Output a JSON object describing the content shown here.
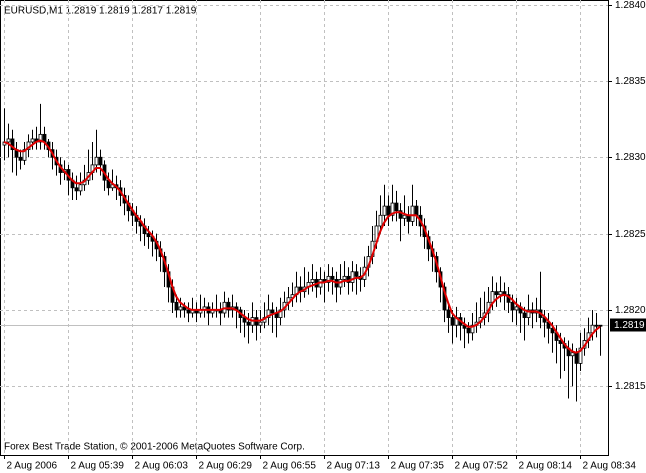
{
  "chart_data": {
    "type": "candlestick",
    "title": "EURUSD,M1  1.2819 1.2819 1.2817 1.2819",
    "annotation": "Forex Best Trade Station, © 2001-2006 MetaQuotes Software Corp.",
    "color": "#000000",
    "ylim": [
      1.28105,
      1.28403
    ],
    "yticks": [
      {
        "value": 1.284,
        "label": "1.2840"
      },
      1.2835,
      {
        "value": 1.283,
        "label": "1.2830"
      },
      1.2825,
      {
        "value": 1.282,
        "label": "1.2820"
      },
      1.2815
    ],
    "grid": true,
    "last_price": 1.2819,
    "categories": [
      "2 Aug 2006",
      null,
      null,
      null,
      null,
      null,
      null,
      null,
      null,
      null,
      null,
      null,
      null,
      null,
      null,
      null,
      "2 Aug 05:39",
      null,
      null,
      null,
      null,
      null,
      null,
      null,
      null,
      null,
      null,
      null,
      null,
      null,
      null,
      null,
      "2 Aug 06:03",
      null,
      null,
      null,
      null,
      null,
      null,
      null,
      null,
      null,
      null,
      null,
      null,
      null,
      null,
      null,
      "2 Aug 06:29",
      null,
      null,
      null,
      null,
      null,
      null,
      null,
      null,
      null,
      null,
      null,
      null,
      null,
      null,
      null,
      "2 Aug 06:55",
      null,
      null,
      null,
      null,
      null,
      null,
      null,
      null,
      null,
      null,
      null,
      null,
      null,
      null,
      null,
      "2 Aug 07:13",
      null,
      null,
      null,
      null,
      null,
      null,
      null,
      null,
      null,
      null,
      null,
      null,
      null,
      null,
      null,
      "2 Aug 07:35",
      null,
      null,
      null,
      null,
      null,
      null,
      null,
      null,
      null,
      null,
      null,
      null,
      null,
      null,
      null,
      "2 Aug 07:52",
      null,
      null,
      null,
      null,
      null,
      null,
      null,
      null,
      null,
      null,
      null,
      null,
      null,
      null,
      null,
      "2 Aug 08:14",
      null,
      null,
      null,
      null,
      null,
      null,
      null,
      null,
      null,
      null,
      null,
      null,
      null,
      null,
      null,
      "2 Aug 08:34",
      null,
      null,
      null,
      null,
      null
    ],
    "ohlc": [
      [
        1.28308,
        1.28332,
        1.28298,
        1.2831
      ],
      [
        1.2831,
        1.28322,
        1.283,
        1.28312
      ],
      [
        1.28312,
        1.28318,
        1.2829,
        1.28305
      ],
      [
        1.28305,
        1.2831,
        1.28288,
        1.283
      ],
      [
        1.283,
        1.28305,
        1.28292,
        1.28298
      ],
      [
        1.28298,
        1.2831,
        1.28295,
        1.28305
      ],
      [
        1.28305,
        1.28315,
        1.283,
        1.2831
      ],
      [
        1.2831,
        1.28318,
        1.28305,
        1.28312
      ],
      [
        1.28312,
        1.2832,
        1.28305,
        1.2831
      ],
      [
        1.2831,
        1.28335,
        1.28305,
        1.28315
      ],
      [
        1.28315,
        1.2832,
        1.28305,
        1.2831
      ],
      [
        1.2831,
        1.28312,
        1.283,
        1.28305
      ],
      [
        1.28305,
        1.2831,
        1.28292,
        1.283
      ],
      [
        1.283,
        1.28305,
        1.28288,
        1.28295
      ],
      [
        1.28295,
        1.283,
        1.28282,
        1.2829
      ],
      [
        1.2829,
        1.28298,
        1.28285,
        1.28292
      ],
      [
        1.28292,
        1.28295,
        1.28275,
        1.28285
      ],
      [
        1.28285,
        1.2829,
        1.28272,
        1.2828
      ],
      [
        1.2828,
        1.28288,
        1.28272,
        1.28278
      ],
      [
        1.28278,
        1.2829,
        1.28275,
        1.28282
      ],
      [
        1.28282,
        1.28295,
        1.28278,
        1.28285
      ],
      [
        1.28285,
        1.28305,
        1.28282,
        1.2829
      ],
      [
        1.2829,
        1.2831,
        1.28285,
        1.28295
      ],
      [
        1.28295,
        1.28318,
        1.2829,
        1.283
      ],
      [
        1.283,
        1.28305,
        1.28288,
        1.28295
      ],
      [
        1.28295,
        1.28298,
        1.28278,
        1.28285
      ],
      [
        1.28285,
        1.2829,
        1.28275,
        1.2828
      ],
      [
        1.2828,
        1.28292,
        1.28278,
        1.28282
      ],
      [
        1.28282,
        1.28288,
        1.28272,
        1.2828
      ],
      [
        1.2828,
        1.28285,
        1.28268,
        1.28275
      ],
      [
        1.28275,
        1.2828,
        1.28262,
        1.2827
      ],
      [
        1.2827,
        1.28275,
        1.28258,
        1.28265
      ],
      [
        1.28265,
        1.2827,
        1.28255,
        1.28262
      ],
      [
        1.28262,
        1.28268,
        1.2825,
        1.28258
      ],
      [
        1.28258,
        1.28262,
        1.28245,
        1.28255
      ],
      [
        1.28255,
        1.2826,
        1.28242,
        1.2825
      ],
      [
        1.2825,
        1.28255,
        1.2824,
        1.28248
      ],
      [
        1.28248,
        1.28252,
        1.28235,
        1.28245
      ],
      [
        1.28245,
        1.2825,
        1.28232,
        1.2824
      ],
      [
        1.2824,
        1.28245,
        1.28225,
        1.28235
      ],
      [
        1.28235,
        1.28238,
        1.28215,
        1.28225
      ],
      [
        1.28225,
        1.2823,
        1.28205,
        1.28215
      ],
      [
        1.28215,
        1.2822,
        1.28198,
        1.28205
      ],
      [
        1.28205,
        1.2821,
        1.28195,
        1.282
      ],
      [
        1.282,
        1.28208,
        1.28195,
        1.28202
      ],
      [
        1.28202,
        1.28205,
        1.28195,
        1.282
      ],
      [
        1.282,
        1.28205,
        1.28192,
        1.28198
      ],
      [
        1.28198,
        1.28208,
        1.28195,
        1.282
      ],
      [
        1.282,
        1.28205,
        1.28192,
        1.28198
      ],
      [
        1.28198,
        1.2821,
        1.28195,
        1.282
      ],
      [
        1.282,
        1.28208,
        1.28195,
        1.28202
      ],
      [
        1.28202,
        1.28205,
        1.2819,
        1.28198
      ],
      [
        1.28198,
        1.28205,
        1.28195,
        1.282
      ],
      [
        1.282,
        1.2821,
        1.28195,
        1.282
      ],
      [
        1.282,
        1.28205,
        1.2819,
        1.28198
      ],
      [
        1.28198,
        1.28212,
        1.28195,
        1.28205
      ],
      [
        1.28205,
        1.28208,
        1.28195,
        1.282
      ],
      [
        1.282,
        1.2821,
        1.28195,
        1.28202
      ],
      [
        1.28202,
        1.28205,
        1.28188,
        1.282
      ],
      [
        1.282,
        1.28202,
        1.28185,
        1.28195
      ],
      [
        1.28195,
        1.282,
        1.28182,
        1.28192
      ],
      [
        1.28192,
        1.28198,
        1.28178,
        1.2819
      ],
      [
        1.2819,
        1.28205,
        1.28185,
        1.28195
      ],
      [
        1.28195,
        1.282,
        1.2818,
        1.2819
      ],
      [
        1.2819,
        1.282,
        1.28185,
        1.28192
      ],
      [
        1.28192,
        1.28205,
        1.28188,
        1.28195
      ],
      [
        1.28195,
        1.2821,
        1.2819,
        1.282
      ],
      [
        1.282,
        1.28205,
        1.28185,
        1.28198
      ],
      [
        1.28198,
        1.28202,
        1.28182,
        1.28195
      ],
      [
        1.28195,
        1.28208,
        1.2819,
        1.282
      ],
      [
        1.282,
        1.28212,
        1.28195,
        1.28205
      ],
      [
        1.28205,
        1.28215,
        1.282,
        1.28208
      ],
      [
        1.28208,
        1.28218,
        1.28202,
        1.2821
      ],
      [
        1.2821,
        1.28225,
        1.28205,
        1.28215
      ],
      [
        1.28215,
        1.28222,
        1.28205,
        1.28212
      ],
      [
        1.28212,
        1.28228,
        1.28208,
        1.28215
      ],
      [
        1.28215,
        1.28225,
        1.2821,
        1.28218
      ],
      [
        1.28218,
        1.2823,
        1.28212,
        1.2822
      ],
      [
        1.2822,
        1.28225,
        1.28208,
        1.28215
      ],
      [
        1.28215,
        1.28228,
        1.2821,
        1.2822
      ],
      [
        1.2822,
        1.28225,
        1.28205,
        1.28218
      ],
      [
        1.28218,
        1.2823,
        1.28212,
        1.28222
      ],
      [
        1.28222,
        1.28228,
        1.2821,
        1.2822
      ],
      [
        1.2822,
        1.28225,
        1.28205,
        1.28215
      ],
      [
        1.28215,
        1.2823,
        1.2821,
        1.2822
      ],
      [
        1.2822,
        1.28232,
        1.28215,
        1.28222
      ],
      [
        1.28222,
        1.28228,
        1.2821,
        1.28218
      ],
      [
        1.28218,
        1.28232,
        1.28212,
        1.28225
      ],
      [
        1.28225,
        1.2823,
        1.2821,
        1.28222
      ],
      [
        1.28222,
        1.28228,
        1.28212,
        1.2822
      ],
      [
        1.2822,
        1.28235,
        1.28215,
        1.28228
      ],
      [
        1.28228,
        1.28242,
        1.28222,
        1.28235
      ],
      [
        1.28235,
        1.28255,
        1.2823,
        1.28245
      ],
      [
        1.28245,
        1.28265,
        1.2824,
        1.28255
      ],
      [
        1.28255,
        1.28275,
        1.2825,
        1.28262
      ],
      [
        1.28262,
        1.28282,
        1.28255,
        1.28268
      ],
      [
        1.28268,
        1.28275,
        1.28255,
        1.28262
      ],
      [
        1.28262,
        1.28282,
        1.28258,
        1.2827
      ],
      [
        1.2827,
        1.28278,
        1.28258,
        1.28265
      ],
      [
        1.28265,
        1.2827,
        1.28245,
        1.2826
      ],
      [
        1.2826,
        1.28275,
        1.28255,
        1.28262
      ],
      [
        1.28262,
        1.28268,
        1.2825,
        1.28258
      ],
      [
        1.28258,
        1.28282,
        1.28255,
        1.28268
      ],
      [
        1.28268,
        1.28272,
        1.28255,
        1.28262
      ],
      [
        1.28262,
        1.28268,
        1.28248,
        1.28255
      ],
      [
        1.28255,
        1.2826,
        1.2824,
        1.28248
      ],
      [
        1.28248,
        1.28252,
        1.28232,
        1.2824
      ],
      [
        1.2824,
        1.28245,
        1.28225,
        1.28235
      ],
      [
        1.28235,
        1.28238,
        1.28218,
        1.28225
      ],
      [
        1.28225,
        1.28228,
        1.28205,
        1.28215
      ],
      [
        1.28215,
        1.28218,
        1.28192,
        1.282
      ],
      [
        1.282,
        1.28205,
        1.28185,
        1.28195
      ],
      [
        1.28195,
        1.282,
        1.28178,
        1.2819
      ],
      [
        1.2819,
        1.28202,
        1.28182,
        1.28195
      ],
      [
        1.28195,
        1.28198,
        1.2818,
        1.2819
      ],
      [
        1.2819,
        1.28195,
        1.28175,
        1.28188
      ],
      [
        1.28188,
        1.28192,
        1.28178,
        1.28185
      ],
      [
        1.28185,
        1.28198,
        1.2818,
        1.2819
      ],
      [
        1.2819,
        1.28205,
        1.28185,
        1.28192
      ],
      [
        1.28192,
        1.28208,
        1.28188,
        1.28195
      ],
      [
        1.28195,
        1.28212,
        1.2819,
        1.28198
      ],
      [
        1.28198,
        1.28215,
        1.28192,
        1.28205
      ],
      [
        1.28205,
        1.28222,
        1.282,
        1.28212
      ],
      [
        1.28212,
        1.28218,
        1.28202,
        1.2821
      ],
      [
        1.2821,
        1.28222,
        1.28205,
        1.28212
      ],
      [
        1.28212,
        1.28218,
        1.282,
        1.2821
      ],
      [
        1.2821,
        1.28215,
        1.28198,
        1.28205
      ],
      [
        1.28205,
        1.2821,
        1.28192,
        1.282
      ],
      [
        1.282,
        1.28208,
        1.2819,
        1.28202
      ],
      [
        1.28202,
        1.28205,
        1.28185,
        1.28198
      ],
      [
        1.28198,
        1.28202,
        1.2818,
        1.28195
      ],
      [
        1.28195,
        1.2821,
        1.2819,
        1.282
      ],
      [
        1.282,
        1.28205,
        1.28188,
        1.28198
      ],
      [
        1.28198,
        1.28208,
        1.28192,
        1.282
      ],
      [
        1.282,
        1.28225,
        1.28188,
        1.28195
      ],
      [
        1.28195,
        1.282,
        1.28182,
        1.28192
      ],
      [
        1.28192,
        1.28198,
        1.28178,
        1.28188
      ],
      [
        1.28188,
        1.28192,
        1.28172,
        1.28185
      ],
      [
        1.28185,
        1.2819,
        1.28165,
        1.2818
      ],
      [
        1.2818,
        1.28185,
        1.28155,
        1.28178
      ],
      [
        1.28178,
        1.28182,
        1.2816,
        1.28175
      ],
      [
        1.28175,
        1.2818,
        1.28142,
        1.2817
      ],
      [
        1.2817,
        1.28178,
        1.2815,
        1.28172
      ],
      [
        1.28172,
        1.28175,
        1.2814,
        1.28165
      ],
      [
        1.28165,
        1.28185,
        1.2816,
        1.28175
      ],
      [
        1.28175,
        1.28188,
        1.2817,
        1.2818
      ],
      [
        1.2818,
        1.28195,
        1.28175,
        1.28185
      ],
      [
        1.28185,
        1.282,
        1.2818,
        1.2819
      ],
      [
        1.2819,
        1.28198,
        1.28182,
        1.2819
      ],
      [
        1.2819,
        1.2819,
        1.2817,
        1.2819
      ]
    ],
    "ma": {
      "color": "#e00000",
      "values": [
        1.2831,
        1.28309,
        1.28307,
        1.28305,
        1.28304,
        1.28304,
        1.28306,
        1.28308,
        1.2831,
        1.28311,
        1.2831,
        1.28307,
        1.28303,
        1.28298,
        1.28294,
        1.28291,
        1.28288,
        1.28285,
        1.28283,
        1.28283,
        1.28284,
        1.28287,
        1.2829,
        1.28293,
        1.28293,
        1.2829,
        1.28286,
        1.28283,
        1.28281,
        1.28278,
        1.28274,
        1.2827,
        1.28266,
        1.28262,
        1.28259,
        1.28255,
        1.28252,
        1.28249,
        1.28245,
        1.2824,
        1.28233,
        1.28225,
        1.28216,
        1.28209,
        1.28205,
        1.28203,
        1.28201,
        1.282,
        1.282,
        1.282,
        1.282,
        1.282,
        1.282,
        1.282,
        1.282,
        1.28201,
        1.28201,
        1.28201,
        1.282,
        1.28198,
        1.28196,
        1.28194,
        1.28193,
        1.28193,
        1.28193,
        1.28194,
        1.28196,
        1.28197,
        1.28198,
        1.28199,
        1.28201,
        1.28204,
        1.28207,
        1.2821,
        1.28212,
        1.28213,
        1.28215,
        1.28216,
        1.28217,
        1.28218,
        1.28218,
        1.28219,
        1.28219,
        1.28218,
        1.28218,
        1.28219,
        1.28219,
        1.2822,
        1.28221,
        1.28221,
        1.28223,
        1.28228,
        1.28235,
        1.28243,
        1.28251,
        1.28257,
        1.28261,
        1.28263,
        1.28264,
        1.28264,
        1.28263,
        1.28262,
        1.28262,
        1.28262,
        1.28259,
        1.28254,
        1.28247,
        1.2824,
        1.28232,
        1.28223,
        1.28213,
        1.28205,
        1.28198,
        1.28195,
        1.28193,
        1.28191,
        1.28189,
        1.28189,
        1.2819,
        1.28192,
        1.28195,
        1.28199,
        1.28204,
        1.28207,
        1.28209,
        1.2821,
        1.28209,
        1.28207,
        1.28204,
        1.28202,
        1.282,
        1.28199,
        1.28199,
        1.28199,
        1.28198,
        1.28196,
        1.28193,
        1.2819,
        1.28186,
        1.28182,
        1.28178,
        1.28175,
        1.28173,
        1.28172,
        1.28173,
        1.28176,
        1.2818,
        1.28184,
        1.28187,
        1.28189
      ]
    }
  }
}
